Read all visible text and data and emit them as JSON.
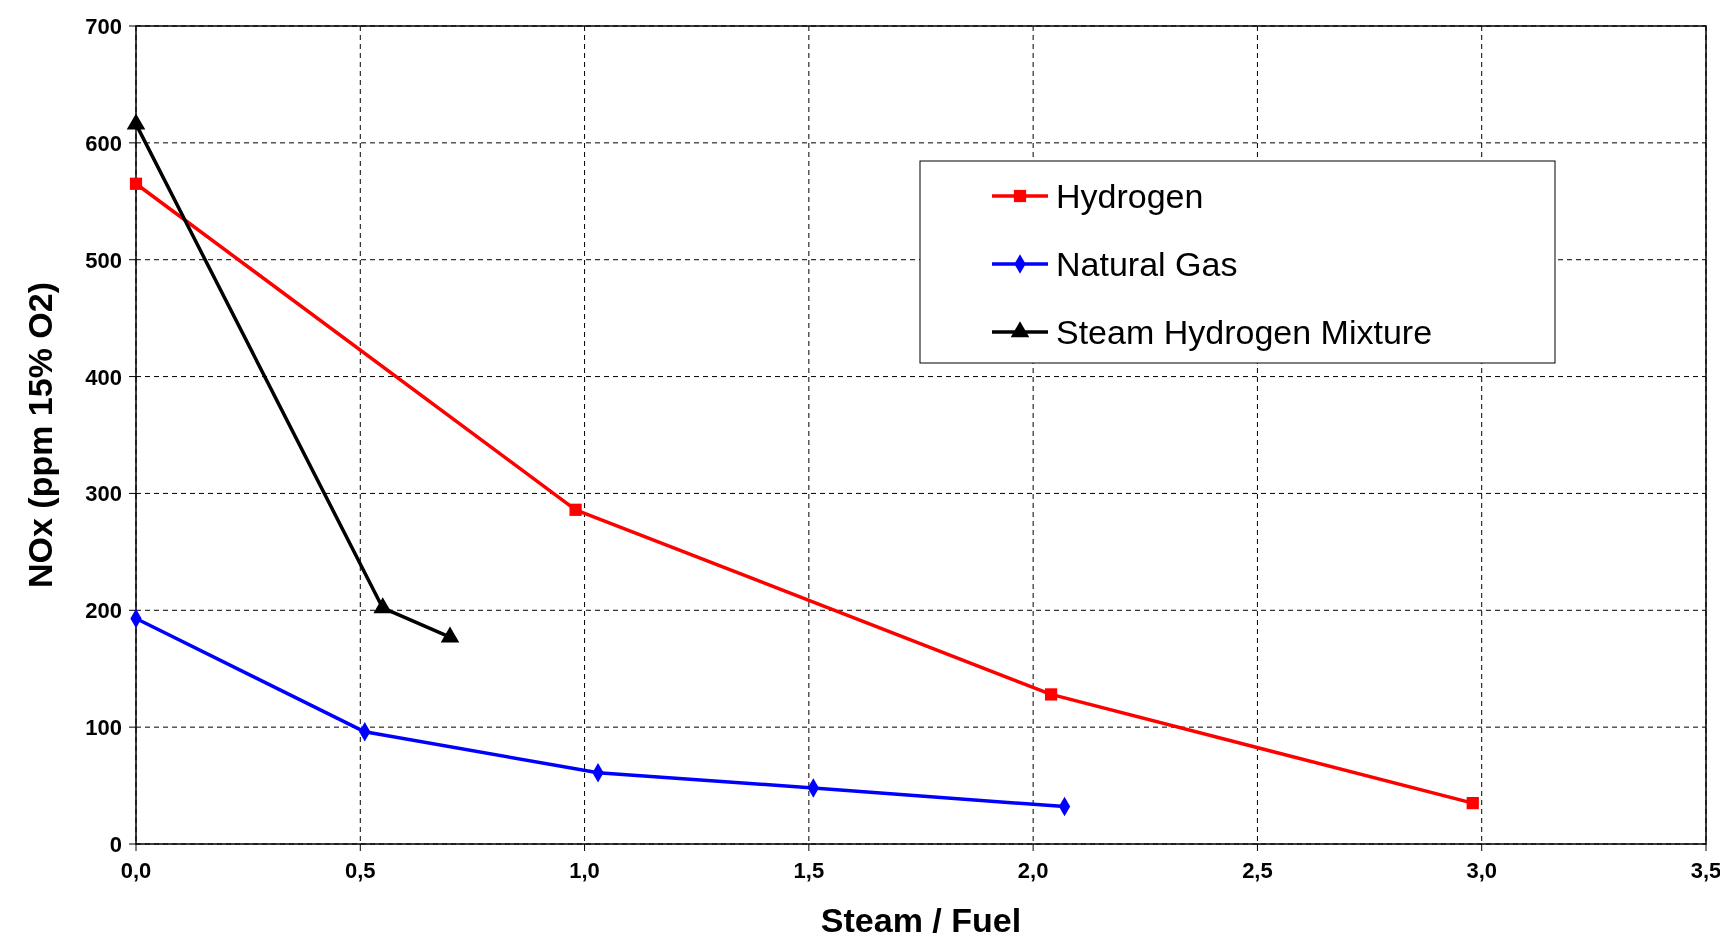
{
  "chart_data": {
    "type": "line",
    "xlabel": "Steam / Fuel",
    "ylabel": "NOx (ppm 15% O2)",
    "xlim": [
      0,
      3.5
    ],
    "xticks": [
      {
        "value": 0,
        "label": "0,0"
      },
      {
        "value": 0.5,
        "label": "0,5"
      },
      {
        "value": 1,
        "label": "1,0"
      },
      {
        "value": 1.5,
        "label": "1,5"
      },
      {
        "value": 2,
        "label": "2,0"
      },
      {
        "value": 2.5,
        "label": "2,5"
      },
      {
        "value": 3,
        "label": "3,0"
      },
      {
        "value": 3.5,
        "label": "3,5"
      }
    ],
    "ylim": [
      0,
      700
    ],
    "yticks": [
      0,
      100,
      200,
      300,
      400,
      500,
      600,
      700
    ],
    "grid": true,
    "legend": "top right",
    "line_style": "solid",
    "series": [
      {
        "name": "Hydrogen",
        "color": "#ff0000",
        "marker": "square",
        "x": [
          0,
          0.98,
          2.04,
          2.98
        ],
        "values": [
          565,
          286,
          128,
          35
        ]
      },
      {
        "name": "Natural Gas",
        "color": "#0000ff",
        "marker": "diamond",
        "x": [
          0,
          0.51,
          1.03,
          1.51,
          2.07
        ],
        "values": [
          193,
          96,
          61,
          48,
          32
        ]
      },
      {
        "name": "Steam Hydrogen Mixture",
        "color": "#000000",
        "marker": "triangle",
        "x": [
          0,
          0.55,
          0.7
        ],
        "values": [
          616,
          202,
          177
        ]
      }
    ]
  }
}
